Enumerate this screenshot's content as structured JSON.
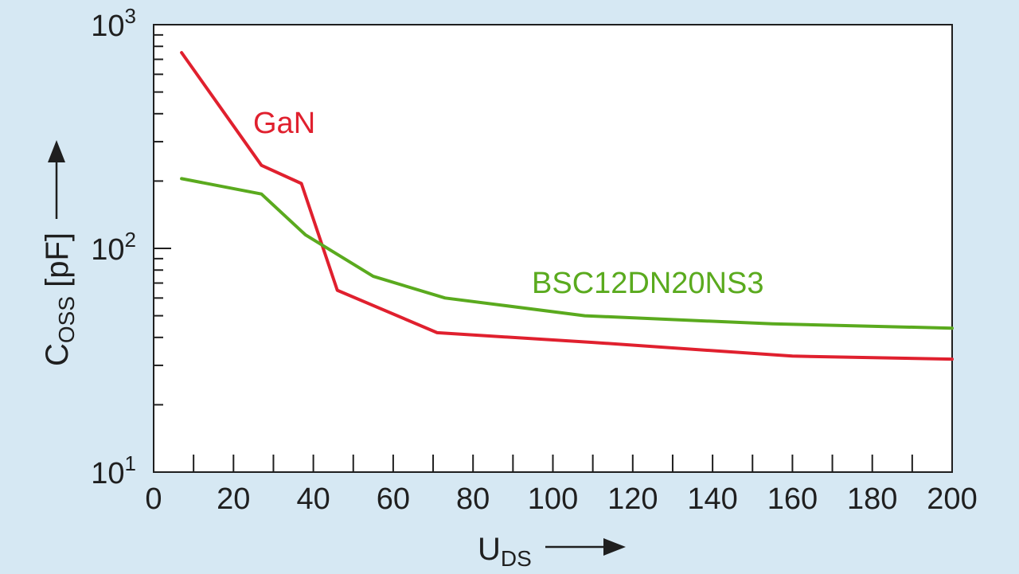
{
  "colors": {
    "background": "#d6e8f3",
    "plot_background": "#ffffff",
    "axis": "#1f1f1f",
    "gan": "#e0202e",
    "bsc": "#5aaa1e"
  },
  "chart_data": {
    "type": "line",
    "y_scale": "log",
    "xlim": [
      0,
      200
    ],
    "ylim": [
      10,
      1000
    ],
    "x_ticks": [
      "0",
      "20",
      "40",
      "60",
      "80",
      "100",
      "120",
      "140",
      "160",
      "180",
      "200"
    ],
    "y_ticks": [
      {
        "base": "10",
        "exp": "1"
      },
      {
        "base": "10",
        "exp": "2"
      },
      {
        "base": "10",
        "exp": "3"
      }
    ],
    "xlabel": {
      "main": "U",
      "sub": "DS"
    },
    "ylabel": {
      "main": "C",
      "sub": "OSS",
      "unit": " [pF]"
    },
    "grid": false,
    "series": [
      {
        "name": "GaN",
        "color": "#e0202e",
        "x": [
          7,
          27,
          37,
          46,
          71,
          110,
          160,
          200
        ],
        "y": [
          750,
          235,
          195,
          65,
          42,
          38,
          33,
          32
        ]
      },
      {
        "name": "BSC12DN20NS3",
        "color": "#5aaa1e",
        "x": [
          7,
          27,
          38,
          55,
          73,
          108,
          155,
          200
        ],
        "y": [
          205,
          175,
          115,
          75,
          60,
          50,
          46,
          44
        ]
      }
    ]
  }
}
